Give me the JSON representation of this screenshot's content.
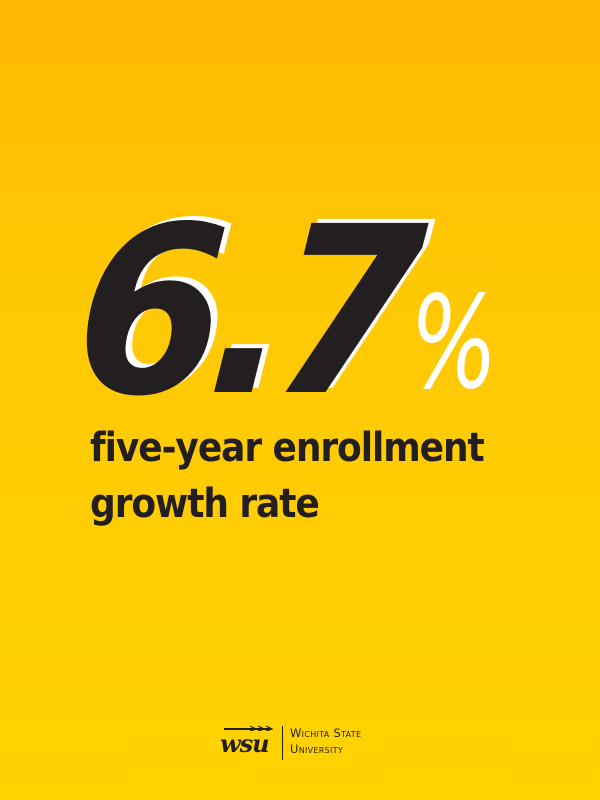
{
  "stat": {
    "value": "6.7",
    "unit": "%"
  },
  "caption": {
    "lines": [
      "five-year enrollment",
      "growth rate"
    ]
  },
  "logo": {
    "mark": "wsu",
    "name_lines": [
      "Wichita State",
      "University"
    ]
  }
}
